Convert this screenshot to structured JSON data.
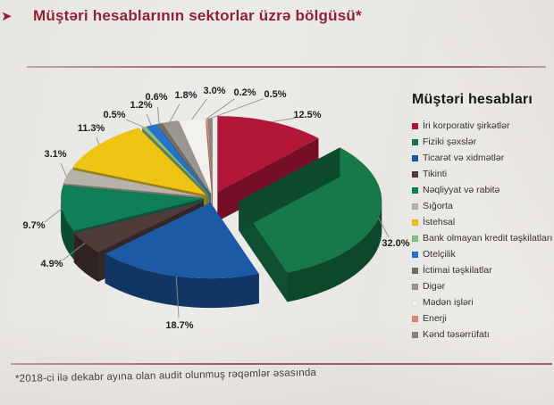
{
  "page": {
    "title": "Müştəri hesablarının sektorlar üzrə bölgüsü*",
    "footnote": "*2018-ci ilə dekabr ayına olan audit olunmuş rəqəmlər əsasında",
    "accent_color": "#8e2136",
    "paper_color": "#eae8e5"
  },
  "legend": {
    "title": "Müştəri hesabları",
    "position": "right"
  },
  "chart_data": {
    "type": "pie",
    "style": "3d_exploded",
    "unit": "%",
    "rotation": "starts at 12 o'clock, clockwise",
    "labels_shown_as": "percent",
    "legend_position": "right",
    "title": "Müştəri hesablarının sektorlar üzrə bölgüsü*",
    "series": [
      {
        "name": "İri korporativ şirkətlər",
        "value": 12.5,
        "color": "#b2173a"
      },
      {
        "name": "Fiziki şəxslər",
        "value": 32.0,
        "color": "#17784a"
      },
      {
        "name": "Ticarət və xidmətlər",
        "value": 18.7,
        "color": "#1d5aa6"
      },
      {
        "name": "Tikinti",
        "value": 4.9,
        "color": "#4f3b39"
      },
      {
        "name": "Nəqliyyat və rabitə",
        "value": 9.7,
        "color": "#0f7f57"
      },
      {
        "name": "Sığorta",
        "value": 3.1,
        "color": "#b7b3a9"
      },
      {
        "name": "İstehsal",
        "value": 11.3,
        "color": "#f0c413"
      },
      {
        "name": "Bank olmayan kredit təşkilatları",
        "value": 0.5,
        "color": "#85c185"
      },
      {
        "name": "Otelçilik",
        "value": 1.2,
        "color": "#2573cd"
      },
      {
        "name": "İctimai təşkilatlar",
        "value": 0.6,
        "color": "#716d69"
      },
      {
        "name": "Digər",
        "value": 1.8,
        "color": "#9b968e"
      },
      {
        "name": "Mədən işləri",
        "value": 3.0,
        "color": "#f3f1ed"
      },
      {
        "name": "Enerji",
        "value": 0.2,
        "color": "#db8a77"
      },
      {
        "name": "Kənd təsərrüfatı",
        "value": 0.5,
        "color": "#8b8680"
      }
    ]
  }
}
